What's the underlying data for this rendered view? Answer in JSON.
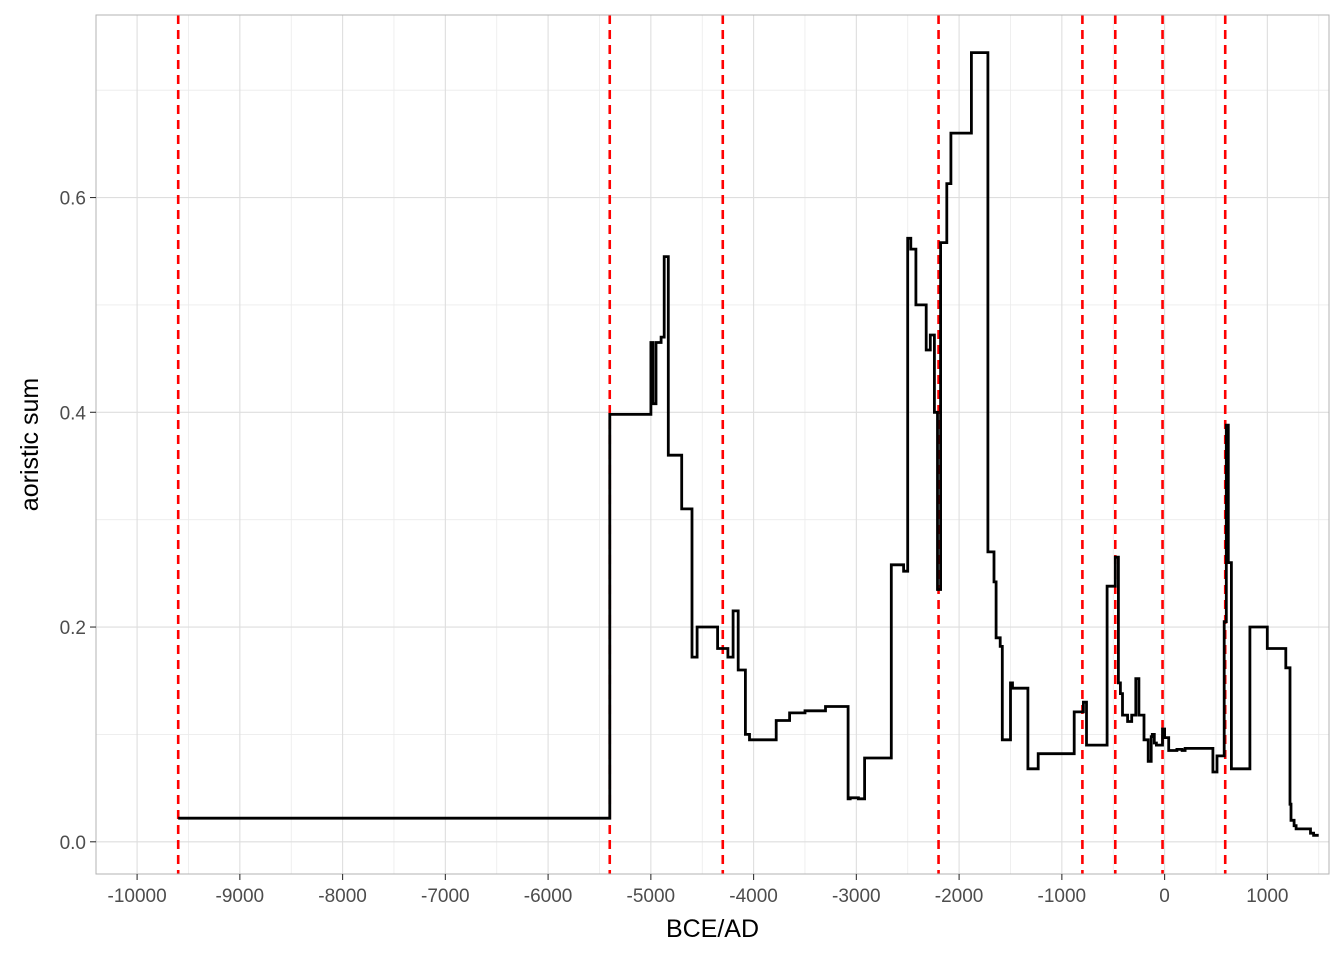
{
  "chart_data": {
    "type": "line",
    "style": "step",
    "title": "",
    "xlabel": "BCE/AD",
    "ylabel": "aoristic sum",
    "xlim": [
      -10400,
      1600
    ],
    "ylim": [
      -0.03,
      0.77
    ],
    "x_ticks": [
      -10000,
      -9000,
      -8000,
      -7000,
      -6000,
      -5000,
      -4000,
      -3000,
      -2000,
      -1000,
      0,
      1000
    ],
    "y_ticks": [
      0.0,
      0.2,
      0.4,
      0.6
    ],
    "x_tick_labels": [
      "-10000",
      "-9000",
      "-8000",
      "-7000",
      "-6000",
      "-5000",
      "-4000",
      "-3000",
      "-2000",
      "-1000",
      "0",
      "1000"
    ],
    "y_tick_labels": [
      "0.0",
      "0.2",
      "0.4",
      "0.6"
    ],
    "grid": true,
    "legend": "none",
    "line_color": "#000000",
    "vline_color": "#ff0000",
    "vlines": [
      -9600,
      -5400,
      -4300,
      -2200,
      -800,
      -480,
      -20,
      590
    ],
    "series": [
      {
        "x": [
          -9600,
          -5400,
          -5400,
          -5000,
          -4980,
          -4950,
          -4900,
          -4870,
          -4830,
          -4800,
          -4700,
          -4600,
          -4550,
          -4450,
          -4350,
          -4300,
          -4250,
          -4200,
          -4150,
          -4080,
          -4040,
          -3980,
          -3780,
          -3650,
          -3500,
          -3300,
          -3080,
          -3060,
          -2980,
          -2920,
          -2880,
          -2660,
          -2540,
          -2500,
          -2470,
          -2420,
          -2360,
          -2320,
          -2280,
          -2240,
          -2210,
          -2180,
          -2150,
          -2120,
          -2080,
          -2000,
          -1920,
          -1880,
          -1720,
          -1660,
          -1640,
          -1600,
          -1580,
          -1560,
          -1500,
          -1480,
          -1330,
          -1230,
          -1160,
          -1080,
          -1040,
          -980,
          -880,
          -790,
          -760,
          -740,
          -700,
          -560,
          -520,
          -480,
          -450,
          -430,
          -410,
          -360,
          -320,
          -280,
          -250,
          -200,
          -160,
          -130,
          -120,
          -100,
          -80,
          -50,
          -20,
          0,
          40,
          120,
          170,
          200,
          260,
          340,
          380,
          420,
          470,
          510,
          520,
          560,
          580,
          600,
          620,
          650,
          700,
          710,
          830,
          850,
          1000,
          1050,
          1180,
          1220,
          1230,
          1260,
          1280,
          1310,
          1420,
          1440,
          1450,
          1500
        ],
        "y": [
          0.022,
          0.398,
          0.398,
          0.465,
          0.408,
          0.465,
          0.47,
          0.545,
          0.36,
          0.36,
          0.31,
          0.172,
          0.2,
          0.2,
          0.18,
          0.18,
          0.172,
          0.215,
          0.16,
          0.1,
          0.095,
          0.095,
          0.113,
          0.12,
          0.122,
          0.126,
          0.04,
          0.041,
          0.04,
          0.078,
          0.078,
          0.258,
          0.252,
          0.562,
          0.552,
          0.5,
          0.5,
          0.458,
          0.472,
          0.4,
          0.235,
          0.558,
          0.558,
          0.613,
          0.66,
          0.66,
          0.66,
          0.735,
          0.27,
          0.242,
          0.19,
          0.182,
          0.095,
          0.095,
          0.148,
          0.143,
          0.068,
          0.082,
          0.082,
          0.082,
          0.082,
          0.082,
          0.121,
          0.13,
          0.09,
          0.09,
          0.09,
          0.238,
          0.238,
          0.265,
          0.148,
          0.138,
          0.118,
          0.112,
          0.118,
          0.152,
          0.118,
          0.095,
          0.075,
          0.098,
          0.1,
          0.092,
          0.09,
          0.09,
          0.105,
          0.097,
          0.085,
          0.086,
          0.085,
          0.087,
          0.087,
          0.087,
          0.087,
          0.087,
          0.065,
          0.08,
          0.08,
          0.08,
          0.205,
          0.388,
          0.26,
          0.068,
          0.068,
          0.068,
          0.2,
          0.2,
          0.18,
          0.18,
          0.162,
          0.035,
          0.02,
          0.015,
          0.012,
          0.012,
          0.008,
          0.008,
          0.006,
          0.006
        ]
      }
    ]
  }
}
